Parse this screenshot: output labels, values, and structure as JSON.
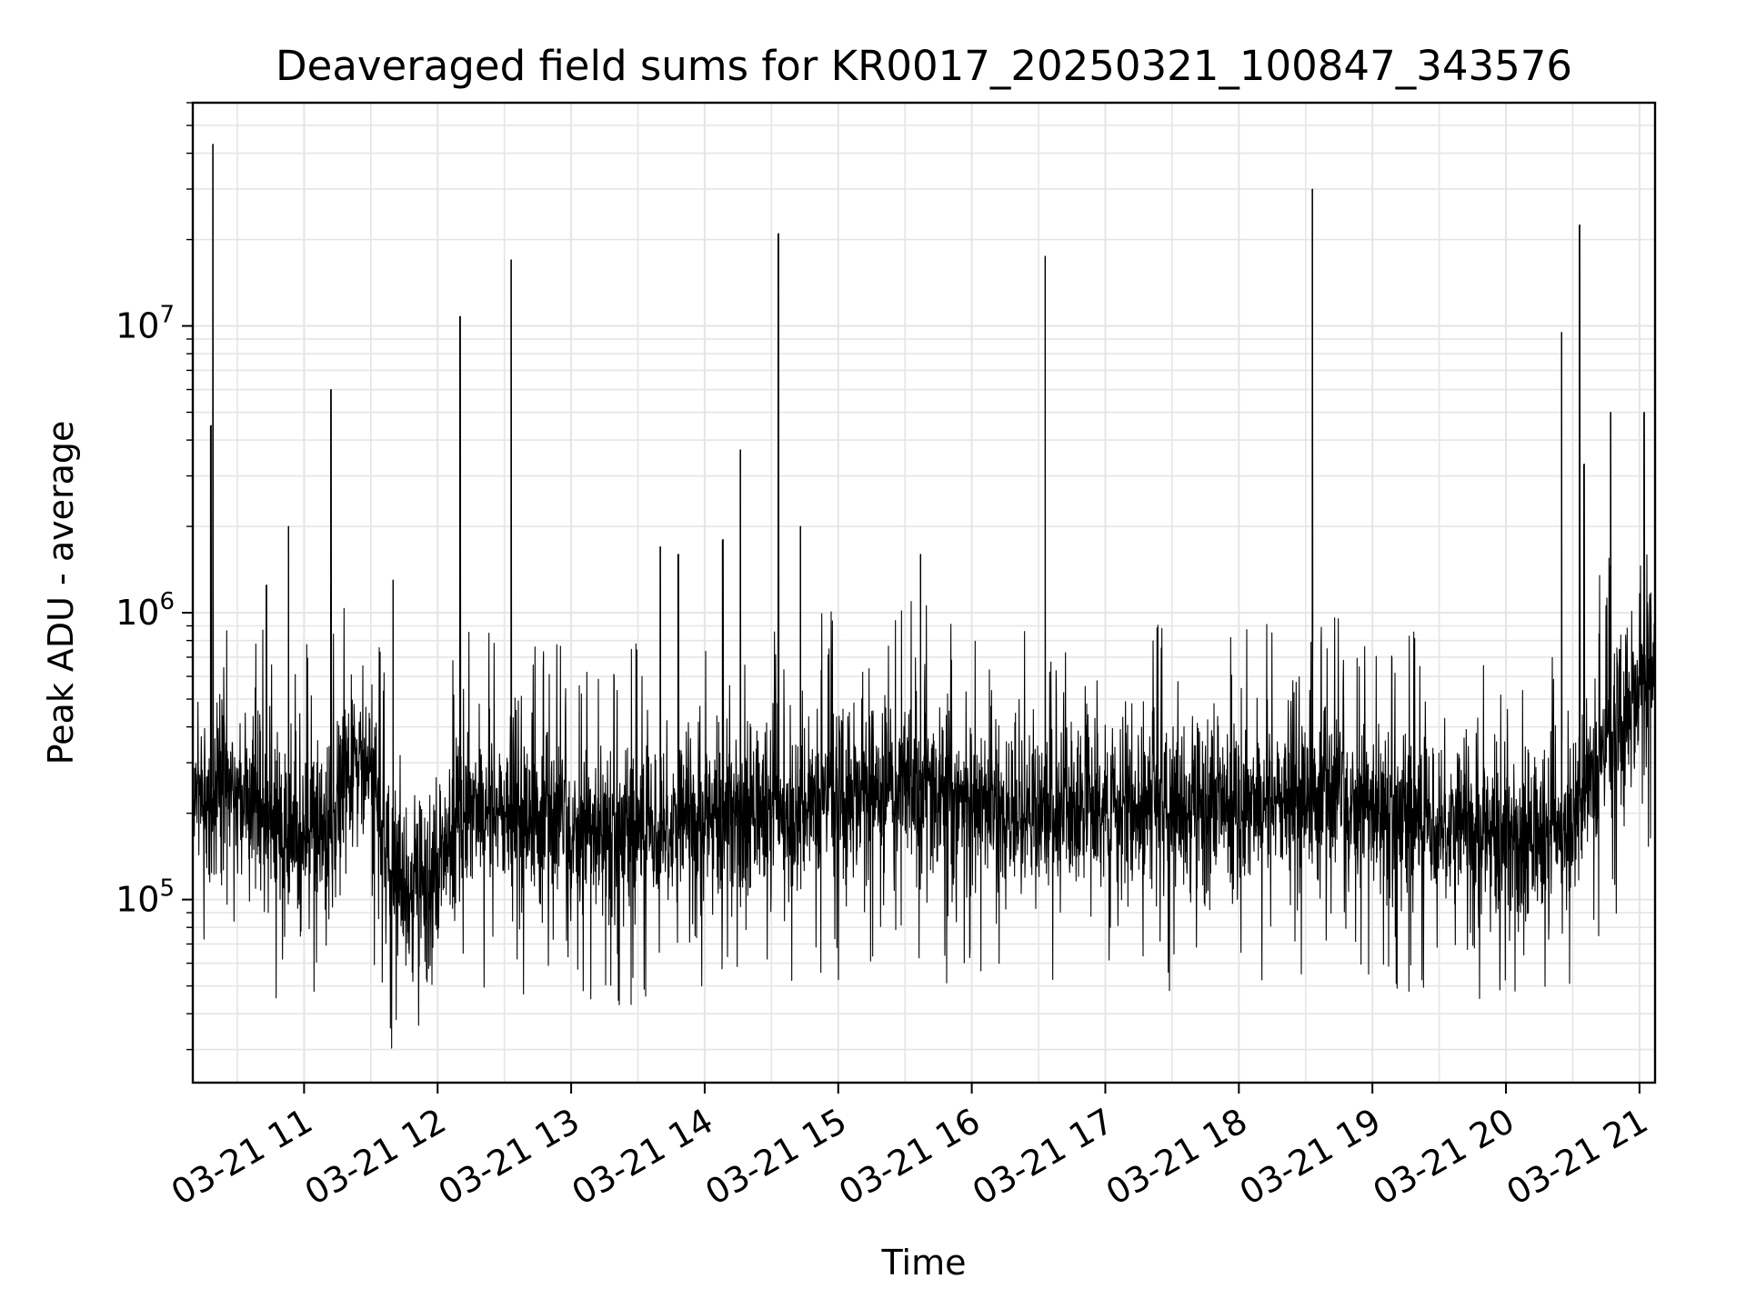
{
  "chart_data": {
    "type": "line",
    "title": "Deaveraged field sums for KR0017_20250321_100847_343576",
    "xlabel": "Time",
    "ylabel": "Peak ADU - average",
    "yscale": "log",
    "xlim": [
      "2025-03-21 10:10",
      "2025-03-21 21:07"
    ],
    "ylim": [
      23000,
      60000000
    ],
    "grid": true,
    "line_color": "#000000",
    "grid_color": "#e5e5e5",
    "x_ticks": [
      {
        "value": "2025-03-21 11:00",
        "label": "03-21 11"
      },
      {
        "value": "2025-03-21 12:00",
        "label": "03-21 12"
      },
      {
        "value": "2025-03-21 13:00",
        "label": "03-21 13"
      },
      {
        "value": "2025-03-21 14:00",
        "label": "03-21 14"
      },
      {
        "value": "2025-03-21 15:00",
        "label": "03-21 15"
      },
      {
        "value": "2025-03-21 16:00",
        "label": "03-21 16"
      },
      {
        "value": "2025-03-21 17:00",
        "label": "03-21 17"
      },
      {
        "value": "2025-03-21 18:00",
        "label": "03-21 18"
      },
      {
        "value": "2025-03-21 19:00",
        "label": "03-21 19"
      },
      {
        "value": "2025-03-21 20:00",
        "label": "03-21 20"
      },
      {
        "value": "2025-03-21 21:00",
        "label": "03-21 21"
      }
    ],
    "y_ticks": [
      {
        "value": 100000,
        "base": "10",
        "exponent": "5"
      },
      {
        "value": 1000000,
        "base": "10",
        "exponent": "6"
      },
      {
        "value": 10000000,
        "base": "10",
        "exponent": "7"
      }
    ],
    "baseline": [
      {
        "x": "2025-03-21 10:10",
        "y": 250000
      },
      {
        "x": "2025-03-21 10:30",
        "y": 240000
      },
      {
        "x": "2025-03-21 10:50",
        "y": 170000
      },
      {
        "x": "2025-03-21 11:10",
        "y": 180000
      },
      {
        "x": "2025-03-21 11:20",
        "y": 260000
      },
      {
        "x": "2025-03-21 11:30",
        "y": 300000
      },
      {
        "x": "2025-03-21 11:35",
        "y": 150000
      },
      {
        "x": "2025-03-21 11:45",
        "y": 110000
      },
      {
        "x": "2025-03-21 12:00",
        "y": 120000
      },
      {
        "x": "2025-03-21 12:10",
        "y": 220000
      },
      {
        "x": "2025-03-21 12:30",
        "y": 200000
      },
      {
        "x": "2025-03-21 13:00",
        "y": 170000
      },
      {
        "x": "2025-03-21 13:30",
        "y": 180000
      },
      {
        "x": "2025-03-21 14:00",
        "y": 190000
      },
      {
        "x": "2025-03-21 14:30",
        "y": 200000
      },
      {
        "x": "2025-03-21 15:00",
        "y": 230000
      },
      {
        "x": "2025-03-21 15:30",
        "y": 250000
      },
      {
        "x": "2025-03-21 16:00",
        "y": 210000
      },
      {
        "x": "2025-03-21 16:30",
        "y": 200000
      },
      {
        "x": "2025-03-21 17:00",
        "y": 205000
      },
      {
        "x": "2025-03-21 17:30",
        "y": 210000
      },
      {
        "x": "2025-03-21 18:00",
        "y": 220000
      },
      {
        "x": "2025-03-21 18:30",
        "y": 225000
      },
      {
        "x": "2025-03-21 19:00",
        "y": 210000
      },
      {
        "x": "2025-03-21 19:30",
        "y": 190000
      },
      {
        "x": "2025-03-21 20:00",
        "y": 160000
      },
      {
        "x": "2025-03-21 20:20",
        "y": 160000
      },
      {
        "x": "2025-03-21 20:40",
        "y": 280000
      },
      {
        "x": "2025-03-21 20:50",
        "y": 400000
      },
      {
        "x": "2025-03-21 21:00",
        "y": 550000
      },
      {
        "x": "2025-03-21 21:07",
        "y": 650000
      }
    ],
    "spikes": [
      {
        "x": "2025-03-21 10:19",
        "y": 43000000
      },
      {
        "x": "2025-03-21 10:18",
        "y": 4500000
      },
      {
        "x": "2025-03-21 10:43",
        "y": 1250000
      },
      {
        "x": "2025-03-21 10:53",
        "y": 2000000
      },
      {
        "x": "2025-03-21 11:12",
        "y": 1200000
      },
      {
        "x": "2025-03-21 11:12",
        "y": 6000000
      },
      {
        "x": "2025-03-21 11:40",
        "y": 1300000
      },
      {
        "x": "2025-03-21 12:10",
        "y": 10800000
      },
      {
        "x": "2025-03-21 12:33",
        "y": 17000000
      },
      {
        "x": "2025-03-21 13:40",
        "y": 1700000
      },
      {
        "x": "2025-03-21 13:48",
        "y": 1600000
      },
      {
        "x": "2025-03-21 14:08",
        "y": 1800000
      },
      {
        "x": "2025-03-21 14:16",
        "y": 3700000
      },
      {
        "x": "2025-03-21 14:33",
        "y": 21000000
      },
      {
        "x": "2025-03-21 14:43",
        "y": 2000000
      },
      {
        "x": "2025-03-21 15:37",
        "y": 1600000
      },
      {
        "x": "2025-03-21 16:33",
        "y": 17500000
      },
      {
        "x": "2025-03-21 18:33",
        "y": 30000000
      },
      {
        "x": "2025-03-21 20:25",
        "y": 9500000
      },
      {
        "x": "2025-03-21 20:33",
        "y": 22500000
      },
      {
        "x": "2025-03-21 20:35",
        "y": 3300000
      },
      {
        "x": "2025-03-21 20:47",
        "y": 5000000
      },
      {
        "x": "2025-03-21 21:02",
        "y": 5000000
      }
    ]
  }
}
